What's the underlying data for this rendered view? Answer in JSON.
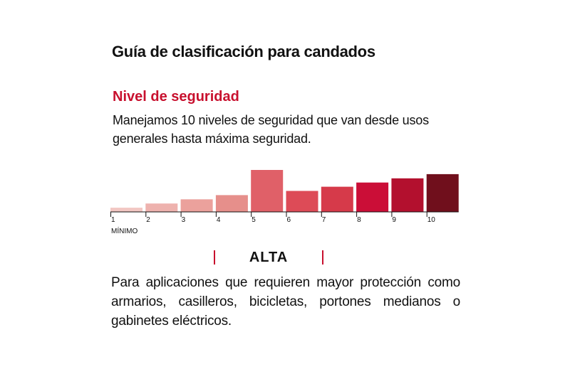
{
  "title": "Guía de clasificación para candados",
  "section": {
    "heading": "Nivel de seguridad",
    "description": "Manejamos 10 niveles de seguridad que van desde usos generales hasta máxima seguridad."
  },
  "selected_level": {
    "name": "ALTA",
    "description": "Para aplicaciones que requieren mayor protección como armarios, casilleros, bicicletas, portones medianos o gabinetes eléctricos."
  },
  "chart_data": {
    "type": "bar",
    "categories": [
      "1",
      "2",
      "3",
      "4",
      "5",
      "6",
      "7",
      "8",
      "9",
      "10"
    ],
    "values": [
      1,
      2,
      3,
      4,
      10,
      5,
      6,
      7,
      8,
      9
    ],
    "highlighted": "5",
    "min_label": "MÍNIMO",
    "colors": [
      "#f2c7c3",
      "#eeb2ae",
      "#eba19c",
      "#e68f8b",
      "#e06068",
      "#dd4b57",
      "#d63a4a",
      "#cb0e37",
      "#b3102e",
      "#700f1c"
    ],
    "axis_color": "#111111"
  }
}
